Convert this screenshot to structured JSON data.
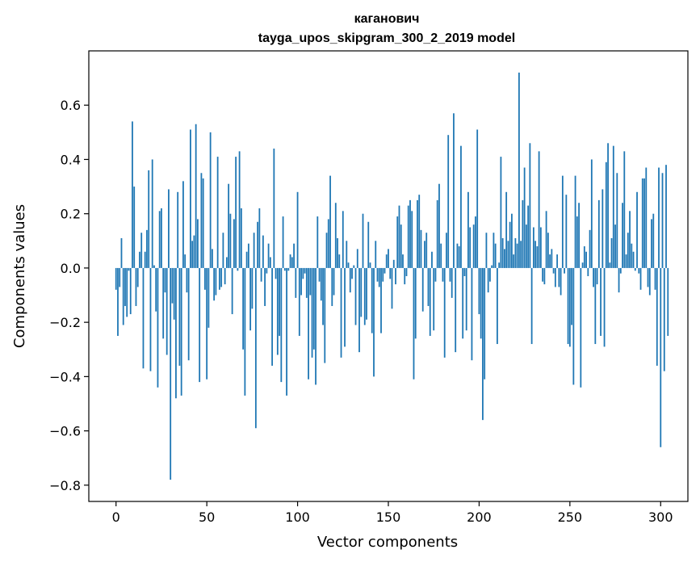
{
  "chart_data": {
    "type": "bar",
    "title": "каганович",
    "subtitle": "tayga_upos_skipgram_300_2_2019 model",
    "xlabel": "Vector components",
    "ylabel": "Components values",
    "xlim": [
      -15,
      315
    ],
    "ylim": [
      -0.86,
      0.8
    ],
    "xticks": [
      0,
      50,
      100,
      150,
      200,
      250,
      300
    ],
    "xtick_labels": [
      "0",
      "50",
      "100",
      "150",
      "200",
      "250",
      "300"
    ],
    "yticks": [
      -0.8,
      -0.6,
      -0.4,
      -0.2,
      0.0,
      0.2,
      0.4,
      0.6
    ],
    "ytick_labels": [
      "−0.8",
      "−0.6",
      "−0.4",
      "−0.2",
      "0.0",
      "0.2",
      "0.4",
      "0.6"
    ],
    "grid": false,
    "bar_color": "#1f77b4",
    "values": [
      -0.08,
      -0.25,
      -0.07,
      0.11,
      -0.21,
      -0.14,
      -0.18,
      -0.01,
      -0.17,
      0.54,
      0.3,
      -0.14,
      -0.07,
      0.06,
      0.13,
      -0.37,
      0.06,
      0.14,
      0.36,
      -0.38,
      0.4,
      0.01,
      -0.16,
      -0.44,
      0.21,
      0.22,
      -0.26,
      -0.09,
      -0.32,
      0.29,
      -0.78,
      -0.13,
      -0.19,
      -0.48,
      0.28,
      -0.36,
      -0.47,
      0.32,
      0.05,
      -0.09,
      -0.34,
      0.51,
      0.1,
      0.12,
      0.53,
      0.18,
      -0.42,
      0.35,
      0.33,
      -0.08,
      -0.41,
      -0.22,
      0.5,
      0.07,
      -0.12,
      -0.1,
      0.41,
      -0.08,
      -0.07,
      0.13,
      -0.06,
      0.04,
      0.31,
      0.2,
      -0.17,
      0.18,
      0.41,
      -0.01,
      0.43,
      0.22,
      -0.3,
      -0.47,
      0.06,
      0.09,
      -0.23,
      -0.15,
      0.13,
      -0.59,
      0.17,
      0.22,
      -0.05,
      0.12,
      -0.14,
      -0.02,
      0.09,
      0.04,
      -0.36,
      0.44,
      -0.04,
      -0.32,
      -0.25,
      -0.42,
      0.19,
      -0.01,
      -0.47,
      -0.01,
      0.05,
      0.04,
      0.09,
      -0.11,
      0.28,
      -0.25,
      -0.1,
      -0.04,
      -0.02,
      -0.11,
      -0.41,
      -0.1,
      -0.33,
      -0.3,
      -0.43,
      0.19,
      -0.05,
      -0.12,
      -0.21,
      -0.35,
      0.13,
      0.18,
      0.34,
      -0.14,
      -0.1,
      0.24,
      0.11,
      0.05,
      -0.33,
      0.21,
      -0.29,
      0.1,
      0.02,
      -0.09,
      -0.04,
      0.01,
      -0.21,
      0.07,
      -0.31,
      -0.18,
      0.2,
      -0.21,
      -0.19,
      0.17,
      0.02,
      -0.24,
      -0.4,
      0.1,
      -0.05,
      -0.07,
      -0.24,
      -0.05,
      -0.02,
      0.05,
      0.07,
      -0.04,
      -0.15,
      0.03,
      -0.06,
      0.19,
      0.23,
      0.16,
      0.05,
      -0.06,
      -0.03,
      0.23,
      0.25,
      0.21,
      -0.41,
      -0.26,
      0.25,
      0.27,
      0.14,
      -0.16,
      0.1,
      0.13,
      -0.14,
      -0.25,
      0.06,
      -0.23,
      -0.05,
      0.25,
      0.31,
      0.09,
      -0.05,
      -0.33,
      0.13,
      0.49,
      -0.05,
      -0.11,
      0.57,
      -0.31,
      0.09,
      0.08,
      0.45,
      -0.26,
      -0.03,
      -0.23,
      0.28,
      0.15,
      -0.34,
      0.16,
      0.19,
      0.51,
      -0.17,
      -0.26,
      -0.56,
      -0.41,
      0.13,
      -0.09,
      -0.05,
      0.01,
      0.13,
      0.09,
      -0.28,
      0.02,
      0.41,
      0.11,
      0.07,
      0.28,
      0.1,
      0.17,
      0.2,
      0.05,
      0.11,
      0.09,
      0.72,
      0.1,
      0.25,
      0.37,
      0.16,
      0.23,
      0.46,
      -0.28,
      0.15,
      0.1,
      0.08,
      0.43,
      0.15,
      -0.05,
      -0.06,
      0.21,
      0.13,
      0.05,
      0.07,
      -0.02,
      -0.07,
      0.05,
      -0.07,
      -0.1,
      0.34,
      -0.02,
      0.27,
      -0.28,
      -0.29,
      -0.21,
      -0.43,
      0.34,
      0.19,
      0.24,
      -0.44,
      0.02,
      0.08,
      0.06,
      -0.03,
      0.14,
      0.4,
      -0.07,
      -0.28,
      -0.06,
      0.25,
      -0.25,
      0.29,
      -0.29,
      0.39,
      0.46,
      0.02,
      0.11,
      0.45,
      0.16,
      0.35,
      -0.09,
      -0.02,
      0.24,
      0.43,
      0.05,
      0.13,
      0.21,
      0.09,
      0.06,
      -0.01,
      0.28,
      -0.02,
      -0.08,
      0.33,
      0.33,
      0.37,
      -0.07,
      -0.1,
      0.18,
      0.2,
      -0.08,
      -0.36,
      0.37,
      -0.66,
      0.35,
      -0.38,
      0.38,
      -0.25
    ]
  }
}
